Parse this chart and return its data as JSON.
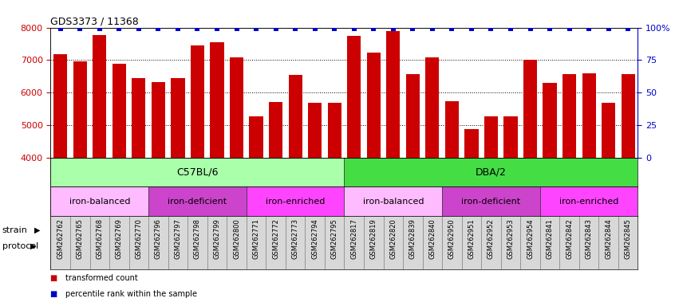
{
  "title": "GDS3373 / 11368",
  "samples": [
    "GSM262762",
    "GSM262765",
    "GSM262768",
    "GSM262769",
    "GSM262770",
    "GSM262796",
    "GSM262797",
    "GSM262798",
    "GSM262799",
    "GSM262800",
    "GSM262771",
    "GSM262772",
    "GSM262773",
    "GSM262794",
    "GSM262795",
    "GSM262817",
    "GSM262819",
    "GSM262820",
    "GSM262839",
    "GSM262840",
    "GSM262950",
    "GSM262951",
    "GSM262952",
    "GSM262953",
    "GSM262954",
    "GSM262841",
    "GSM262842",
    "GSM262843",
    "GSM262844",
    "GSM262845"
  ],
  "bar_values": [
    7180,
    6960,
    7760,
    6880,
    6460,
    6320,
    6460,
    7440,
    7560,
    7080,
    5280,
    5720,
    6540,
    5680,
    5680,
    7740,
    7220,
    7880,
    6580,
    7080,
    5740,
    4880,
    5280,
    5280,
    7000,
    6300,
    6580,
    6600,
    5680,
    6580
  ],
  "percentile_values": [
    99,
    99,
    99,
    99,
    99,
    99,
    99,
    99,
    99,
    99,
    99,
    99,
    99,
    99,
    99,
    99,
    99,
    99,
    99,
    99,
    99,
    99,
    99,
    99,
    99,
    99,
    99,
    99,
    99,
    99
  ],
  "bar_color": "#cc0000",
  "percentile_color": "#0000cc",
  "ylim": [
    4000,
    8000
  ],
  "yticks": [
    4000,
    5000,
    6000,
    7000,
    8000
  ],
  "right_yticks": [
    0,
    25,
    50,
    75,
    100
  ],
  "right_ylim": [
    0,
    100
  ],
  "strain_groups": [
    {
      "label": "C57BL/6",
      "start": 0,
      "end": 14,
      "color": "#aaffaa"
    },
    {
      "label": "DBA/2",
      "start": 15,
      "end": 29,
      "color": "#44dd44"
    }
  ],
  "protocol_groups": [
    {
      "label": "iron-balanced",
      "start": 0,
      "end": 4,
      "color": "#ffaaff"
    },
    {
      "label": "iron-deficient",
      "start": 5,
      "end": 9,
      "color": "#dd44dd"
    },
    {
      "label": "iron-enriched",
      "start": 10,
      "end": 14,
      "color": "#ff00ff"
    },
    {
      "label": "iron-balanced",
      "start": 15,
      "end": 19,
      "color": "#ffaaff"
    },
    {
      "label": "iron-deficient",
      "start": 20,
      "end": 24,
      "color": "#dd44dd"
    },
    {
      "label": "iron-enriched",
      "start": 25,
      "end": 29,
      "color": "#ff00ff"
    }
  ],
  "legend_items": [
    {
      "label": "transformed count",
      "color": "#cc0000"
    },
    {
      "label": "percentile rank within the sample",
      "color": "#0000cc"
    }
  ],
  "strain_label": "strain",
  "protocol_label": "protocol",
  "plot_bg": "#e8e8e8",
  "xtick_bg": "#d8d8d8"
}
